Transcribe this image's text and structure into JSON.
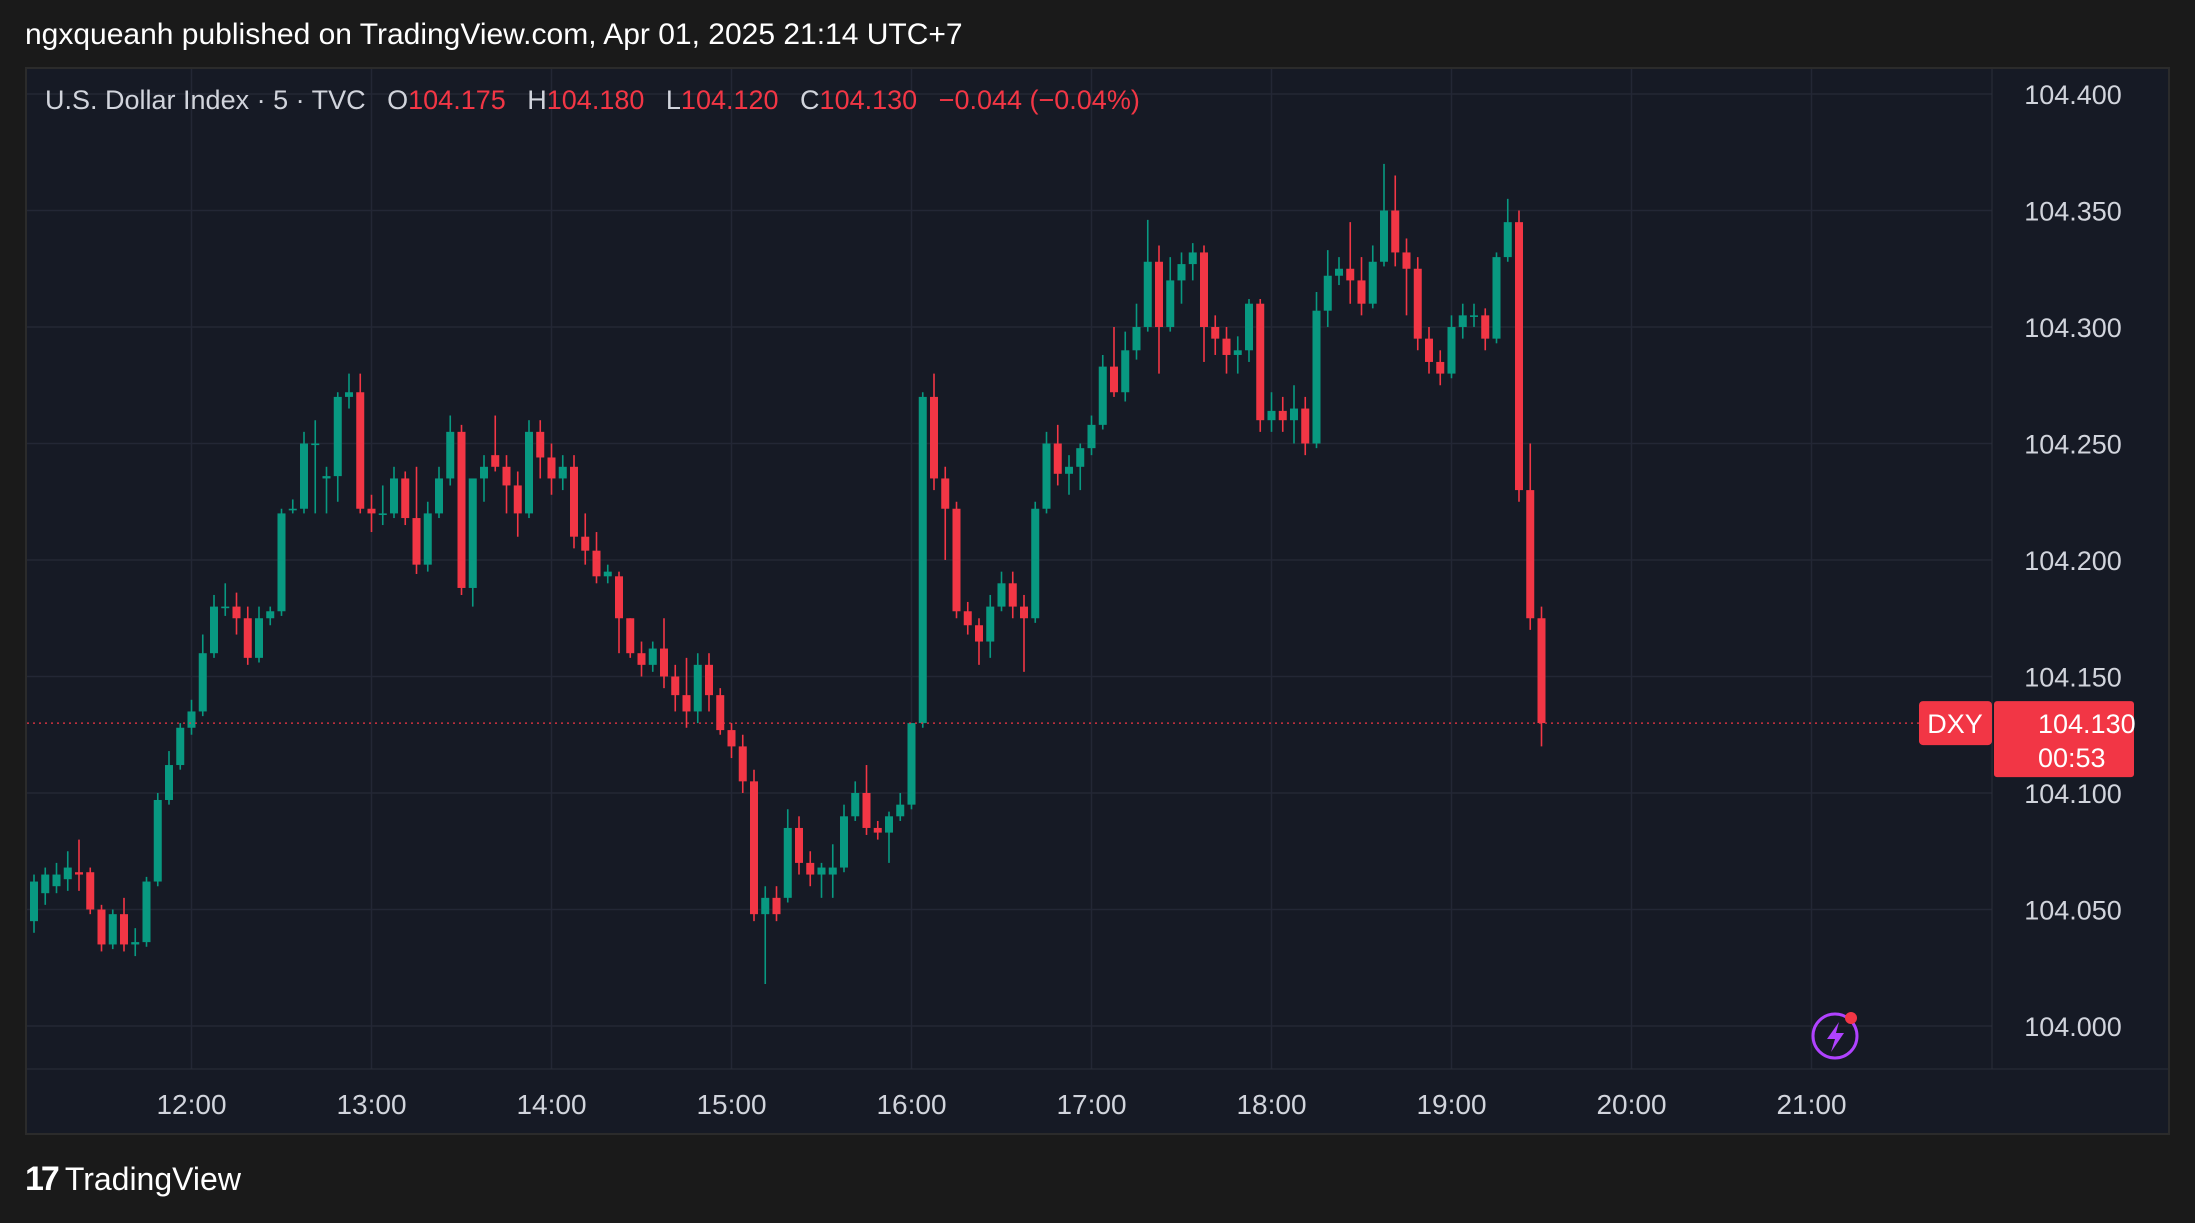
{
  "header": {
    "text": "ngxqueanh published on TradingView.com, Apr 01, 2025 21:14 UTC+7"
  },
  "legend": {
    "symbol": "U.S. Dollar Index · 5 · TVC",
    "o_label": "O",
    "o_value": "104.175",
    "h_label": "H",
    "h_value": "104.180",
    "l_label": "L",
    "l_value": "104.120",
    "c_label": "C",
    "c_value": "104.130",
    "change": "−0.044 (−0.04%)"
  },
  "price_tag": {
    "ticker": "DXY",
    "price": "104.130",
    "countdown": "00:53"
  },
  "footer": {
    "brand": "TradingView",
    "logo_glyph": "17"
  },
  "colors": {
    "up": "#089981",
    "down": "#f23645",
    "bg": "#161a25",
    "grid": "#232735",
    "text": "#d1d4dc"
  },
  "chart_data": {
    "type": "candlestick",
    "symbol": "DXY",
    "interval": "5",
    "ylim": [
      103.98,
      104.41
    ],
    "y_ticks": [
      "104.000",
      "104.050",
      "104.100",
      "104.150",
      "104.200",
      "104.250",
      "104.300",
      "104.350",
      "104.400"
    ],
    "x_ticks": [
      {
        "label": "12:00",
        "index": 14
      },
      {
        "label": "13:00",
        "index": 30
      },
      {
        "label": "14:00",
        "index": 46
      },
      {
        "label": "15:00",
        "index": 62
      },
      {
        "label": "16:00",
        "index": 78
      },
      {
        "label": "17:00",
        "index": 94
      },
      {
        "label": "18:00",
        "index": 110
      },
      {
        "label": "19:00",
        "index": 126
      },
      {
        "label": "20:00",
        "index": 142
      },
      {
        "label": "21:00",
        "index": 158
      }
    ],
    "last_price": 104.13,
    "candles": [
      [
        104.045,
        104.062,
        104.04,
        104.065
      ],
      [
        104.057,
        104.065,
        104.052,
        104.068
      ],
      [
        104.06,
        104.065,
        104.057,
        104.07
      ],
      [
        104.063,
        104.068,
        104.058,
        104.075
      ],
      [
        104.066,
        104.065,
        104.058,
        104.08
      ],
      [
        104.066,
        104.05,
        104.048,
        104.068
      ],
      [
        104.05,
        104.035,
        104.032,
        104.052
      ],
      [
        104.035,
        104.048,
        104.033,
        104.05
      ],
      [
        104.048,
        104.035,
        104.032,
        104.055
      ],
      [
        104.035,
        104.036,
        104.03,
        104.042
      ],
      [
        104.036,
        104.062,
        104.034,
        104.064
      ],
      [
        104.062,
        104.097,
        104.06,
        104.1
      ],
      [
        104.097,
        104.112,
        104.095,
        104.118
      ],
      [
        104.112,
        104.128,
        104.11,
        104.13
      ],
      [
        104.128,
        104.135,
        104.125,
        104.14
      ],
      [
        104.135,
        104.16,
        104.133,
        104.168
      ],
      [
        104.16,
        104.18,
        104.158,
        104.185
      ],
      [
        104.18,
        104.18,
        104.176,
        104.19
      ],
      [
        104.18,
        104.175,
        104.168,
        104.186
      ],
      [
        104.175,
        104.158,
        104.155,
        104.18
      ],
      [
        104.158,
        104.175,
        104.156,
        104.18
      ],
      [
        104.175,
        104.178,
        104.172,
        104.18
      ],
      [
        104.178,
        104.22,
        104.176,
        104.222
      ],
      [
        104.222,
        104.222,
        104.22,
        104.226
      ],
      [
        104.222,
        104.25,
        104.22,
        104.255
      ],
      [
        104.25,
        104.25,
        104.22,
        104.26
      ],
      [
        104.235,
        104.236,
        104.22,
        104.24
      ],
      [
        104.236,
        104.27,
        104.225,
        104.272
      ],
      [
        104.27,
        104.272,
        104.265,
        104.28
      ],
      [
        104.272,
        104.222,
        104.22,
        104.28
      ],
      [
        104.222,
        104.22,
        104.212,
        104.228
      ],
      [
        104.22,
        104.22,
        104.215,
        104.232
      ],
      [
        104.22,
        104.235,
        104.218,
        104.24
      ],
      [
        104.235,
        104.218,
        104.215,
        104.238
      ],
      [
        104.218,
        104.198,
        104.194,
        104.24
      ],
      [
        104.198,
        104.22,
        104.195,
        104.225
      ],
      [
        104.22,
        104.235,
        104.218,
        104.24
      ],
      [
        104.235,
        104.255,
        104.232,
        104.262
      ],
      [
        104.255,
        104.188,
        104.185,
        104.258
      ],
      [
        104.188,
        104.235,
        104.18,
        104.235
      ],
      [
        104.235,
        104.24,
        104.225,
        104.245
      ],
      [
        104.245,
        104.24,
        104.238,
        104.262
      ],
      [
        104.24,
        104.232,
        104.22,
        104.245
      ],
      [
        104.232,
        104.22,
        104.21,
        104.238
      ],
      [
        104.22,
        104.255,
        104.218,
        104.26
      ],
      [
        104.255,
        104.244,
        104.235,
        104.26
      ],
      [
        104.244,
        104.235,
        104.228,
        104.25
      ],
      [
        104.235,
        104.24,
        104.23,
        104.245
      ],
      [
        104.24,
        104.21,
        104.205,
        104.245
      ],
      [
        104.21,
        104.204,
        104.198,
        104.22
      ],
      [
        104.204,
        104.193,
        104.19,
        104.212
      ],
      [
        104.193,
        104.195,
        104.19,
        104.198
      ],
      [
        104.193,
        104.175,
        104.16,
        104.195
      ],
      [
        104.175,
        104.16,
        104.158,
        104.175
      ],
      [
        104.16,
        104.155,
        104.15,
        104.165
      ],
      [
        104.155,
        104.162,
        104.152,
        104.165
      ],
      [
        104.162,
        104.15,
        104.145,
        104.175
      ],
      [
        104.15,
        104.142,
        104.135,
        104.155
      ],
      [
        104.142,
        104.135,
        104.128,
        104.158
      ],
      [
        104.135,
        104.155,
        104.13,
        104.16
      ],
      [
        104.155,
        104.142,
        104.135,
        104.16
      ],
      [
        104.142,
        104.127,
        104.125,
        104.145
      ],
      [
        104.127,
        104.12,
        104.115,
        104.13
      ],
      [
        104.12,
        104.105,
        104.1,
        104.125
      ],
      [
        104.105,
        104.048,
        104.045,
        104.11
      ],
      [
        104.048,
        104.055,
        104.018,
        104.06
      ],
      [
        104.055,
        104.048,
        104.045,
        104.06
      ],
      [
        104.055,
        104.085,
        104.053,
        104.093
      ],
      [
        104.085,
        104.07,
        104.065,
        104.09
      ],
      [
        104.07,
        104.065,
        104.06,
        104.075
      ],
      [
        104.065,
        104.068,
        104.055,
        104.07
      ],
      [
        104.065,
        104.068,
        104.055,
        104.078
      ],
      [
        104.068,
        104.09,
        104.066,
        104.095
      ],
      [
        104.09,
        104.1,
        104.088,
        104.105
      ],
      [
        104.1,
        104.085,
        104.082,
        104.112
      ],
      [
        104.085,
        104.083,
        104.08,
        104.088
      ],
      [
        104.083,
        104.09,
        104.07,
        104.092
      ],
      [
        104.09,
        104.095,
        104.088,
        104.1
      ],
      [
        104.095,
        104.13,
        104.093,
        104.13
      ],
      [
        104.13,
        104.27,
        104.128,
        104.272
      ],
      [
        104.27,
        104.235,
        104.23,
        104.28
      ],
      [
        104.235,
        104.222,
        104.2,
        104.24
      ],
      [
        104.222,
        104.178,
        104.175,
        104.225
      ],
      [
        104.178,
        104.172,
        104.168,
        104.182
      ],
      [
        104.172,
        104.165,
        104.155,
        104.175
      ],
      [
        104.165,
        104.18,
        104.158,
        104.185
      ],
      [
        104.18,
        104.19,
        104.178,
        104.195
      ],
      [
        104.19,
        104.18,
        104.175,
        104.195
      ],
      [
        104.18,
        104.175,
        104.152,
        104.185
      ],
      [
        104.175,
        104.222,
        104.173,
        104.225
      ],
      [
        104.222,
        104.25,
        104.22,
        104.255
      ],
      [
        104.25,
        104.237,
        104.232,
        104.258
      ],
      [
        104.237,
        104.24,
        104.228,
        104.245
      ],
      [
        104.24,
        104.248,
        104.23,
        104.25
      ],
      [
        104.248,
        104.258,
        104.245,
        104.262
      ],
      [
        104.258,
        104.283,
        104.256,
        104.288
      ],
      [
        104.283,
        104.272,
        104.27,
        104.3
      ],
      [
        104.272,
        104.29,
        104.268,
        104.298
      ],
      [
        104.29,
        104.3,
        104.286,
        104.31
      ],
      [
        104.3,
        104.328,
        104.298,
        104.346
      ],
      [
        104.328,
        104.3,
        104.28,
        104.335
      ],
      [
        104.3,
        104.32,
        104.298,
        104.33
      ],
      [
        104.32,
        104.327,
        104.31,
        104.332
      ],
      [
        104.327,
        104.332,
        104.32,
        104.336
      ],
      [
        104.332,
        104.3,
        104.285,
        104.335
      ],
      [
        104.3,
        104.295,
        104.288,
        104.305
      ],
      [
        104.295,
        104.288,
        104.28,
        104.3
      ],
      [
        104.288,
        104.29,
        104.28,
        104.296
      ],
      [
        104.29,
        104.31,
        104.285,
        104.312
      ],
      [
        104.31,
        104.26,
        104.255,
        104.312
      ],
      [
        104.26,
        104.264,
        104.255,
        104.272
      ],
      [
        104.264,
        104.26,
        104.255,
        104.27
      ],
      [
        104.26,
        104.265,
        104.25,
        104.275
      ],
      [
        104.265,
        104.25,
        104.245,
        104.27
      ],
      [
        104.25,
        104.307,
        104.248,
        104.315
      ],
      [
        104.307,
        104.322,
        104.3,
        104.333
      ],
      [
        104.322,
        104.325,
        104.318,
        104.33
      ],
      [
        104.325,
        104.32,
        104.31,
        104.345
      ],
      [
        104.32,
        104.31,
        104.305,
        104.33
      ],
      [
        104.31,
        104.328,
        104.308,
        104.335
      ],
      [
        104.328,
        104.35,
        104.326,
        104.37
      ],
      [
        104.35,
        104.332,
        104.326,
        104.365
      ],
      [
        104.332,
        104.325,
        104.305,
        104.338
      ],
      [
        104.325,
        104.295,
        104.29,
        104.33
      ],
      [
        104.295,
        104.285,
        104.28,
        104.3
      ],
      [
        104.285,
        104.28,
        104.275,
        104.29
      ],
      [
        104.28,
        104.3,
        104.278,
        104.305
      ],
      [
        104.3,
        104.305,
        104.295,
        104.31
      ],
      [
        104.305,
        104.305,
        104.3,
        104.31
      ],
      [
        104.305,
        104.295,
        104.29,
        104.308
      ],
      [
        104.295,
        104.33,
        104.293,
        104.332
      ],
      [
        104.33,
        104.345,
        104.328,
        104.355
      ],
      [
        104.345,
        104.23,
        104.225,
        104.35
      ],
      [
        104.23,
        104.175,
        104.17,
        104.25
      ],
      [
        104.175,
        104.13,
        104.12,
        104.18
      ]
    ]
  }
}
